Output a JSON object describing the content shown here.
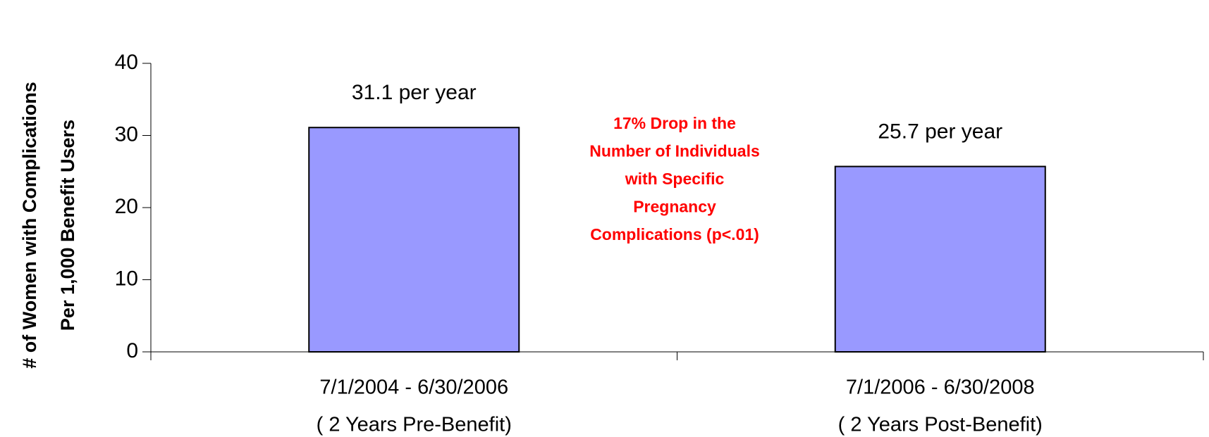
{
  "chart_data": {
    "type": "bar",
    "y_label": [
      "# of Women with Complications",
      "Per 1,000 Benefit Users"
    ],
    "categories": [
      [
        "7/1/2004 - 6/30/2006",
        "( 2 Years Pre-Benefit)"
      ],
      [
        "7/1/2006 - 6/30/2008",
        "( 2 Years Post-Benefit)"
      ]
    ],
    "values": [
      31.1,
      25.7
    ],
    "value_labels": [
      "31.1 per year",
      "25.7 per year"
    ],
    "color": "#9999ff",
    "ylim": [
      0,
      40
    ],
    "yticks": [
      0,
      10,
      20,
      30,
      40
    ],
    "annotation": [
      "17% Drop in the",
      "Number of Individuals",
      "with Specific",
      "Pregnancy",
      "Complications (p<.01)"
    ]
  }
}
